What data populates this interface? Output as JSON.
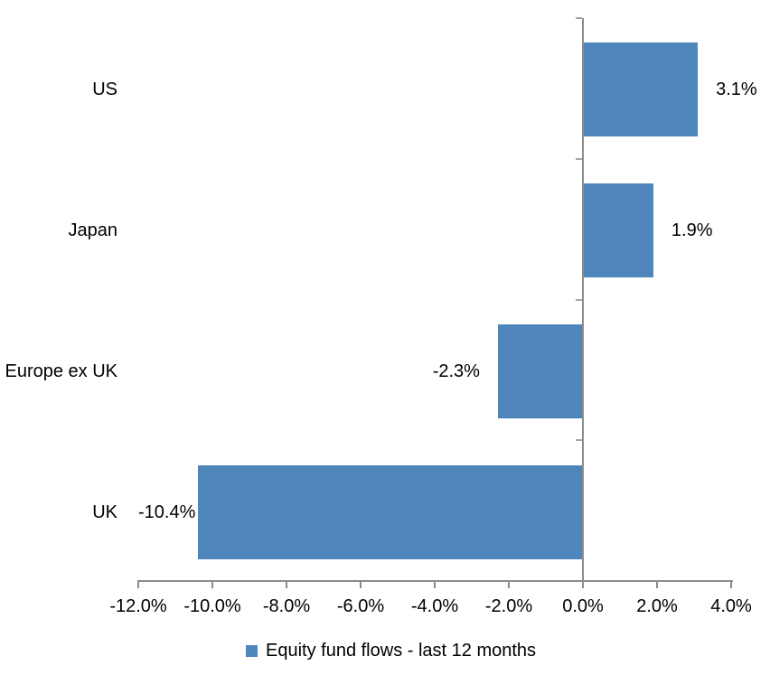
{
  "chart_data": {
    "type": "bar",
    "orientation": "horizontal",
    "title": "",
    "xlabel": "",
    "ylabel": "",
    "categories": [
      "US",
      "Japan",
      "Europe ex UK",
      "UK"
    ],
    "values": [
      3.1,
      1.9,
      -2.3,
      -10.4
    ],
    "value_labels": [
      "3.1%",
      "1.9%",
      "-2.3%",
      "-10.4%"
    ],
    "series": [
      {
        "name": "Equity fund flows - last 12 months",
        "values": [
          3.1,
          1.9,
          -2.3,
          -10.4
        ]
      }
    ],
    "xlim": [
      -12,
      4
    ],
    "x_tick_values": [
      -12,
      -10,
      -8,
      -6,
      -4,
      -2,
      0,
      2,
      4
    ],
    "x_tick_labels": [
      "-12.0%",
      "-10.0%",
      "-8.0%",
      "-6.0%",
      "-4.0%",
      "-2.0%",
      "0.0%",
      "2.0%",
      "4.0%"
    ],
    "grid": "off",
    "legend": {
      "label": "Equity fund flows - last 12 months",
      "position": "bottom",
      "marker_color": "#4E86BC"
    },
    "colors": {
      "bar": "#4E86BC",
      "axis_line": "#8C8C8C",
      "x_tick": "#8C8C8C",
      "y_tick": "#A6A6A6",
      "text": "#000000",
      "background": "#FFFFFF"
    }
  }
}
